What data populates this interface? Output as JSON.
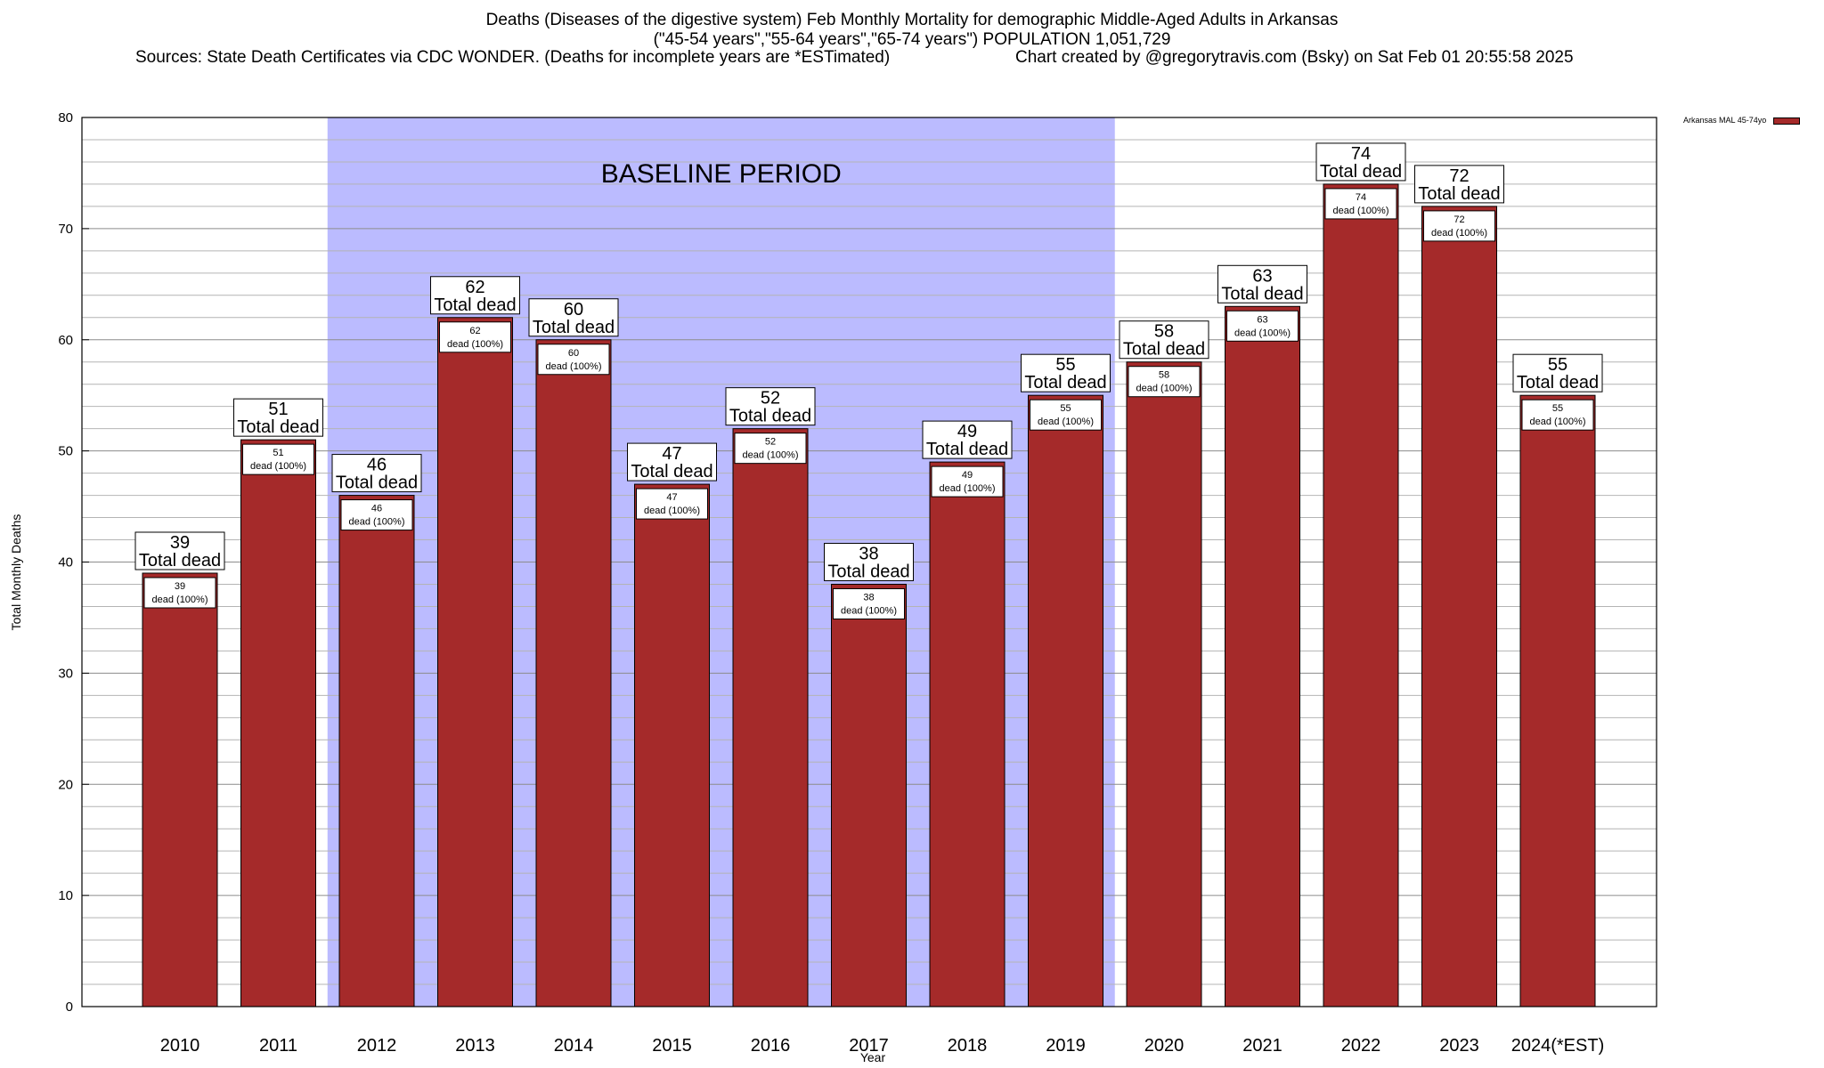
{
  "header": {
    "title_line1": "Deaths (Diseases of the digestive system) Feb Monthly Mortality for demographic Middle-Aged Adults in Arkansas",
    "title_line2": "(\"45-54 years\",\"55-64 years\",\"65-74 years\") POPULATION 1,051,729",
    "sources": "Sources: State Death Certificates via CDC WONDER. (Deaths for incomplete years are *ESTimated)",
    "credit": "Chart created by @gregorytravis.com (Bsky) on Sat Feb 01 20:55:58 2025"
  },
  "chart_data": {
    "type": "bar",
    "title": "Deaths (Diseases of the digestive system) Feb Monthly Mortality for demographic Middle-Aged Adults in Arkansas",
    "xlabel": "Year",
    "ylabel": "Total Monthly Deaths",
    "ylim": [
      0,
      80
    ],
    "yticks": [
      0,
      10,
      20,
      30,
      40,
      50,
      60,
      70,
      80
    ],
    "grid": true,
    "legend_position": "top-right",
    "colors": {
      "bar": "#a52a2a",
      "baseline_band": "#bbbbff"
    },
    "categories": [
      "2010",
      "2011",
      "2012",
      "2013",
      "2014",
      "2015",
      "2016",
      "2017",
      "2018",
      "2019",
      "2020",
      "2021",
      "2022",
      "2023",
      "2024(*EST)"
    ],
    "series": [
      {
        "name": "Arkansas MAL 45-74yo",
        "values": [
          39,
          51,
          46,
          62,
          60,
          47,
          52,
          38,
          49,
          55,
          58,
          63,
          74,
          72,
          55
        ]
      }
    ],
    "baseline_region": {
      "label": "BASELINE PERIOD",
      "from_category": "2012",
      "to_category": "2019"
    },
    "bar_label_text": "Total dead",
    "inner_label_text": "dead (100%)"
  }
}
